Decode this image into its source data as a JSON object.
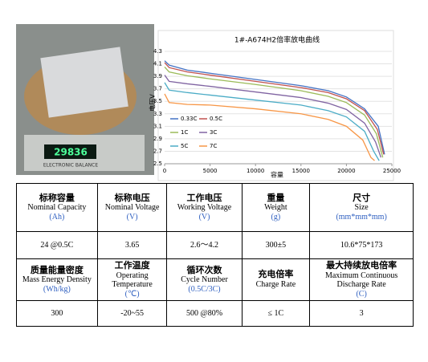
{
  "photo": {
    "display": "29836",
    "brand": "ELECTRONIC BALANCE"
  },
  "chart_data": {
    "type": "line",
    "title": "1#-A674H2倍率放电曲线",
    "y_label": "电压V",
    "x_label": "容量",
    "xlim": [
      0,
      25000
    ],
    "xticks": [
      0,
      5000,
      10000,
      15000,
      20000,
      25000
    ],
    "ylim": [
      2.5,
      4.3
    ],
    "yticks": [
      2.5,
      2.7,
      2.9,
      3.1,
      3.3,
      3.5,
      3.7,
      3.9,
      4.1,
      4.3
    ],
    "grid": true,
    "series": [
      {
        "name": "0.33C",
        "color": "#4472c4",
        "x": [
          0,
          500,
          2500,
          5000,
          10000,
          15000,
          18000,
          20000,
          22000,
          23500,
          24200
        ],
        "values": [
          4.15,
          4.08,
          4.0,
          3.95,
          3.85,
          3.75,
          3.67,
          3.57,
          3.38,
          3.1,
          2.65
        ]
      },
      {
        "name": "0.5C",
        "color": "#c0504d",
        "x": [
          0,
          500,
          2500,
          5000,
          10000,
          15000,
          18000,
          20000,
          22000,
          23400,
          24100
        ],
        "values": [
          4.12,
          4.04,
          3.97,
          3.92,
          3.82,
          3.72,
          3.64,
          3.54,
          3.35,
          3.05,
          2.65
        ]
      },
      {
        "name": "1C",
        "color": "#9bbb59",
        "x": [
          0,
          500,
          2500,
          5000,
          10000,
          15000,
          18000,
          20000,
          22000,
          23300,
          24000
        ],
        "values": [
          4.05,
          3.97,
          3.91,
          3.86,
          3.77,
          3.67,
          3.58,
          3.48,
          3.28,
          2.98,
          2.6
        ]
      },
      {
        "name": "3C",
        "color": "#8064a2",
        "x": [
          0,
          500,
          2500,
          5000,
          10000,
          15000,
          18000,
          20000,
          22000,
          23200,
          23800
        ],
        "values": [
          3.92,
          3.82,
          3.78,
          3.74,
          3.65,
          3.56,
          3.47,
          3.37,
          3.15,
          2.85,
          2.6
        ]
      },
      {
        "name": "5C",
        "color": "#4bacc6",
        "x": [
          0,
          500,
          2500,
          5000,
          10000,
          15000,
          18000,
          20000,
          22000,
          23000,
          23600
        ],
        "values": [
          3.8,
          3.68,
          3.64,
          3.6,
          3.52,
          3.44,
          3.35,
          3.25,
          3.02,
          2.7,
          2.55
        ]
      },
      {
        "name": "7C",
        "color": "#f79646",
        "x": [
          0,
          500,
          2500,
          5000,
          10000,
          15000,
          18000,
          20000,
          21800,
          22700,
          23100
        ],
        "values": [
          3.62,
          3.48,
          3.45,
          3.44,
          3.38,
          3.3,
          3.21,
          3.1,
          2.88,
          2.6,
          2.55
        ]
      }
    ]
  },
  "table": {
    "rows": [
      [
        {
          "zh": "标称容量",
          "en": "Nominal Capacity",
          "unit": "(Ah)"
        },
        {
          "zh": "标称电压",
          "en": "Nominal Voltage",
          "unit": "(V)"
        },
        {
          "zh": "工作电压",
          "en": "Working Voltage",
          "unit": "(V)"
        },
        {
          "zh": "重量",
          "en": "Weight",
          "unit": "(g)"
        },
        {
          "zh": "尺寸",
          "en": "Size",
          "unit": "(mm*mm*mm)"
        }
      ],
      [
        "24 @0.5C",
        "3.65",
        "2.6～4.2",
        "300±5",
        "10.6*75*173"
      ],
      [
        {
          "zh": "质量能量密度",
          "en": "Mass Energy Density",
          "unit": "(Wh/kg)"
        },
        {
          "zh": "工作温度",
          "en": "Operating Temperature",
          "unit": "(℃)"
        },
        {
          "zh": "循环次数",
          "en": "Cycle Number",
          "unit": "(0.5C/3C)"
        },
        {
          "zh": "充电倍率",
          "en": "Charge Rate"
        },
        {
          "zh": "最大持续放电倍率",
          "en": "Maximum Continuous Discharge Rate",
          "unit": "(C)"
        }
      ],
      [
        "300",
        "-20~55",
        "500 @80%",
        "≤ 1C",
        "3"
      ]
    ]
  }
}
